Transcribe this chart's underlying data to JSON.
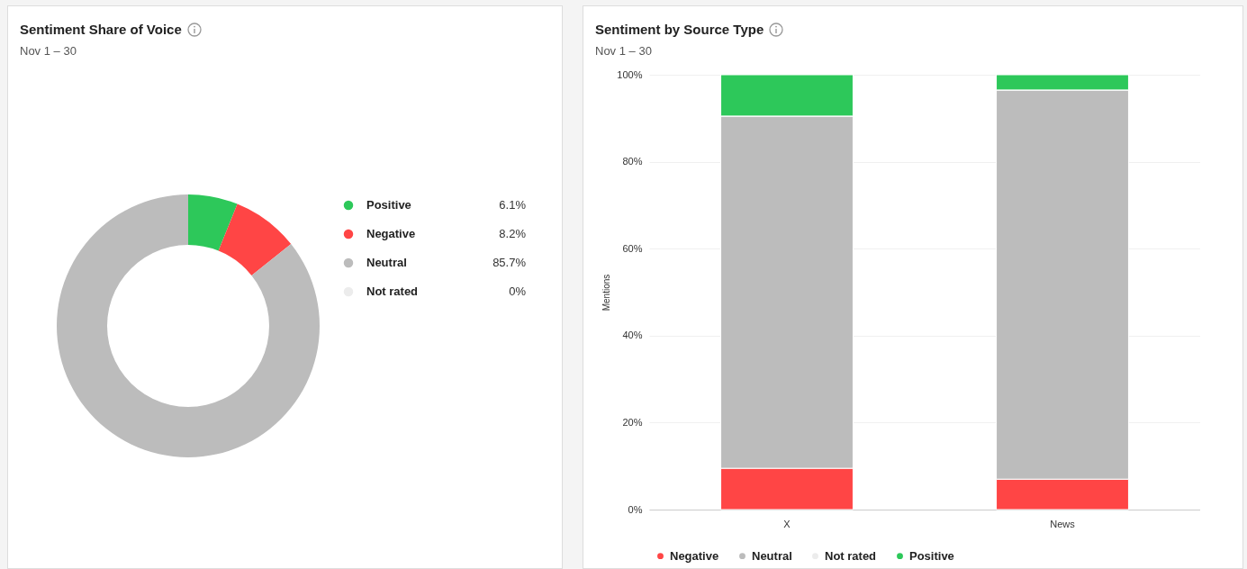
{
  "chart_data": [
    {
      "type": "donut",
      "title": "Sentiment Share of Voice",
      "subtitle": "Nov 1 – 30",
      "categories": [
        "Positive",
        "Negative",
        "Neutral",
        "Not rated"
      ],
      "values": [
        6.1,
        8.2,
        85.7,
        0
      ],
      "value_labels": [
        "6.1%",
        "8.2%",
        "85.7%",
        "0%"
      ],
      "colors": [
        "#2dc85a",
        "#ff4545",
        "#bcbcbc",
        "#ececec"
      ],
      "legend": "right"
    },
    {
      "type": "bar",
      "title": "Sentiment by Source Type",
      "subtitle": "Nov 1 – 30",
      "categories": [
        "X",
        "News"
      ],
      "stacked": true,
      "ylabel": "Mentions",
      "ylim": [
        0,
        100
      ],
      "yticks": [
        {
          "value": 0,
          "label": "0%"
        },
        {
          "value": 20,
          "label": "20%"
        },
        {
          "value": 40,
          "label": "40%"
        },
        {
          "value": 60,
          "label": "60%"
        },
        {
          "value": 80,
          "label": "80%"
        },
        {
          "value": 100,
          "label": "100%"
        }
      ],
      "grid": "y",
      "legend": "bottom",
      "series": [
        {
          "name": "Negative",
          "color": "#ff4545",
          "values": [
            9.5,
            7.0
          ]
        },
        {
          "name": "Neutral",
          "color": "#bcbcbc",
          "values": [
            81.0,
            89.5
          ]
        },
        {
          "name": "Not rated",
          "color": "#ececec",
          "values": [
            0,
            0
          ]
        },
        {
          "name": "Positive",
          "color": "#2dc85a",
          "values": [
            9.5,
            3.5
          ]
        }
      ]
    }
  ]
}
